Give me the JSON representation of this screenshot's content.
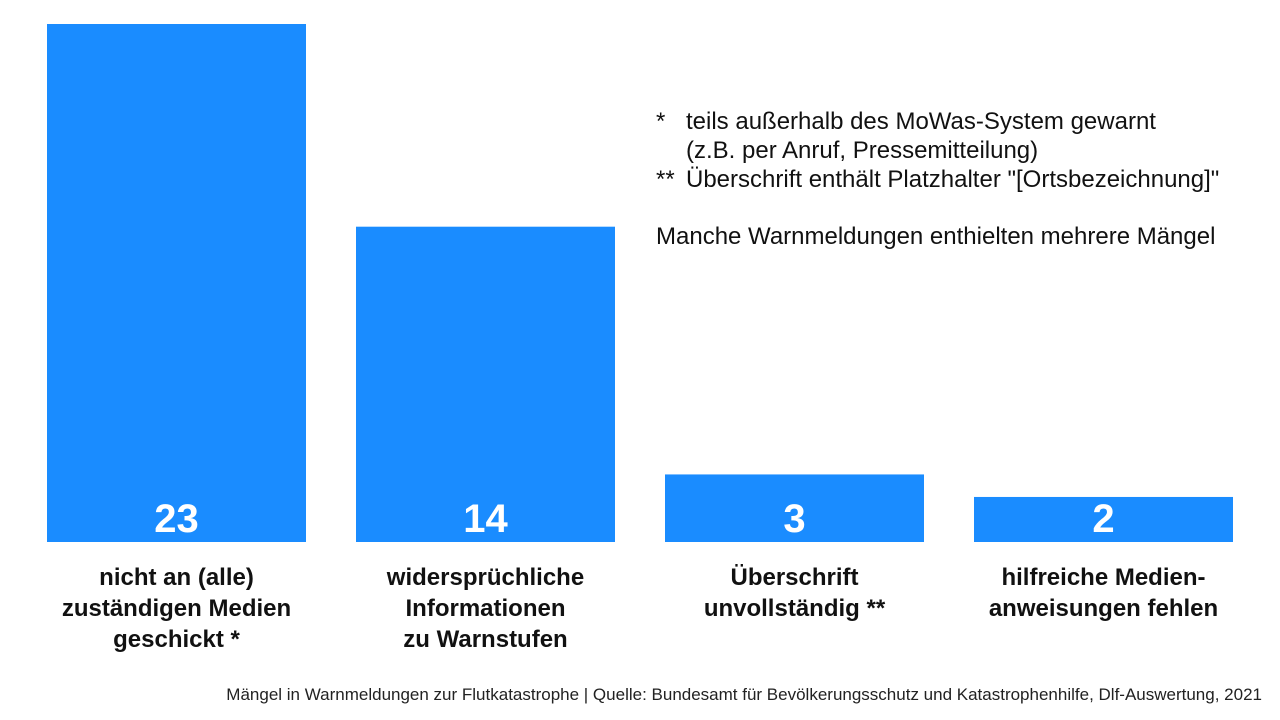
{
  "chart_data": {
    "type": "bar",
    "categories": [
      [
        "nicht an (alle)",
        "zuständigen Medien",
        "geschickt *"
      ],
      [
        "widersprüchliche",
        "Informationen",
        "zu Warnstufen"
      ],
      [
        "Überschrift",
        "unvollständig **"
      ],
      [
        "hilfreiche Medien-",
        "anweisungen fehlen"
      ]
    ],
    "values": [
      23,
      14,
      3,
      2
    ],
    "ylim": [
      0,
      23
    ],
    "bar_color": "#1a8cff",
    "value_label_color": "#ffffff",
    "grid": false,
    "title": "",
    "xlabel": "",
    "ylabel": ""
  },
  "notes": {
    "note1_mark": "*",
    "note1_line1": "teils außerhalb des MoWas-System gewarnt",
    "note1_line2": "(z.B. per Anruf, Pressemitteilung)",
    "note2_mark": "**",
    "note2_text": "Überschrift enthält Platzhalter \"[Ortsbezeichnung]\"",
    "extra": "Manche Warnmeldungen enthielten mehrere Mängel"
  },
  "caption": "Mängel in Warnmeldungen zur Flutkatastrophe | Quelle: Bundesamt für Bevölkerungsschutz und Katastrophenhilfe, Dlf-Auswertung, 2021"
}
